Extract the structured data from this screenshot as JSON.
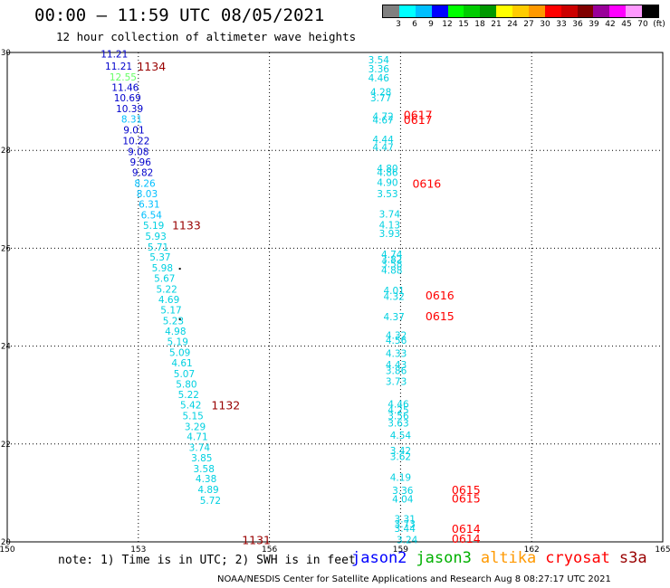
{
  "header": {
    "title": "00:00 — 11:59 UTC 08/05/2021",
    "subtitle": "12 hour collection of altimeter wave heights"
  },
  "colorbar": {
    "colors": [
      "#808080",
      "#00ffff",
      "#00bfff",
      "#0000ff",
      "#00ff00",
      "#00cc00",
      "#009900",
      "#ffff00",
      "#ffcc00",
      "#ff9900",
      "#ff0000",
      "#cc0000",
      "#800000",
      "#990099",
      "#ff00ff",
      "#ff99ff",
      "#000000"
    ],
    "labels": [
      "3",
      "6",
      "9",
      "12",
      "15",
      "18",
      "21",
      "24",
      "27",
      "30",
      "33",
      "36",
      "39",
      "42",
      "45",
      "70",
      "(ft)"
    ]
  },
  "footer": {
    "note": "note: 1) Time is in UTC; 2) SWH is in feet",
    "credit": "NOAA/NESDIS Center for Satellite Applications and Research    Aug  8 08:27:17 UTC 2021"
  },
  "legend": [
    {
      "name": "jason2",
      "color": "#0000ff"
    },
    {
      "name": "jason3",
      "color": "#00b000"
    },
    {
      "name": "altika",
      "color": "#ff9900"
    },
    {
      "name": "cryosat",
      "color": "#ff0000"
    },
    {
      "name": "s3a",
      "color": "#990000"
    }
  ],
  "chart_data": {
    "type": "scatter",
    "xlim": [
      150,
      165
    ],
    "ylim": [
      20,
      30
    ],
    "xticks": [
      "150",
      "153",
      "156",
      "159",
      "162",
      "165"
    ],
    "yticks": [
      "20",
      "22",
      "24",
      "26",
      "28",
      "30"
    ],
    "grid": true,
    "points": [
      {
        "x": 152.45,
        "y": 29.97,
        "label": "11.21",
        "color": "#0000cc"
      },
      {
        "x": 152.55,
        "y": 29.72,
        "label": "11.21",
        "color": "#0000cc"
      },
      {
        "x": 152.65,
        "y": 29.5,
        "label": "12.55",
        "color": "#66ff66"
      },
      {
        "x": 152.7,
        "y": 29.29,
        "label": "11.46",
        "color": "#0000cc"
      },
      {
        "x": 152.75,
        "y": 29.08,
        "label": "10.69",
        "color": "#0000cc"
      },
      {
        "x": 152.8,
        "y": 28.85,
        "label": "10.39",
        "color": "#0000cc"
      },
      {
        "x": 152.85,
        "y": 28.64,
        "label": "8.31",
        "color": "#00bfff"
      },
      {
        "x": 152.9,
        "y": 28.42,
        "label": "9.01",
        "color": "#0000cc"
      },
      {
        "x": 152.95,
        "y": 28.2,
        "label": "10.22",
        "color": "#0000cc"
      },
      {
        "x": 153.0,
        "y": 27.98,
        "label": "9.08",
        "color": "#0000cc"
      },
      {
        "x": 153.05,
        "y": 27.76,
        "label": "9.96",
        "color": "#0000cc"
      },
      {
        "x": 153.1,
        "y": 27.55,
        "label": "9.82",
        "color": "#0000cc"
      },
      {
        "x": 153.15,
        "y": 27.33,
        "label": "8.26",
        "color": "#00bfff"
      },
      {
        "x": 153.2,
        "y": 27.12,
        "label": "8.03",
        "color": "#00bfff"
      },
      {
        "x": 153.25,
        "y": 26.9,
        "label": "6.31",
        "color": "#00bfff"
      },
      {
        "x": 153.3,
        "y": 26.68,
        "label": "6.54",
        "color": "#00bfff"
      },
      {
        "x": 153.35,
        "y": 26.47,
        "label": "5.19",
        "color": "#00d0e0"
      },
      {
        "x": 153.4,
        "y": 26.25,
        "label": "5.93",
        "color": "#00d0e0"
      },
      {
        "x": 153.45,
        "y": 26.03,
        "label": "5.71",
        "color": "#00d0e0"
      },
      {
        "x": 153.5,
        "y": 25.82,
        "label": "5.37",
        "color": "#00d0e0"
      },
      {
        "x": 153.55,
        "y": 25.6,
        "label": "5.98",
        "color": "#00d0e0"
      },
      {
        "x": 153.6,
        "y": 25.39,
        "label": "5.67",
        "color": "#00d0e0"
      },
      {
        "x": 153.65,
        "y": 25.17,
        "label": "5.22",
        "color": "#00d0e0"
      },
      {
        "x": 153.7,
        "y": 24.95,
        "label": "4.69",
        "color": "#00d0e0"
      },
      {
        "x": 153.75,
        "y": 24.74,
        "label": "5.17",
        "color": "#00d0e0"
      },
      {
        "x": 153.8,
        "y": 24.52,
        "label": "5.23",
        "color": "#00d0e0"
      },
      {
        "x": 153.85,
        "y": 24.31,
        "label": "4.98",
        "color": "#00d0e0"
      },
      {
        "x": 153.9,
        "y": 24.09,
        "label": "5.19",
        "color": "#00d0e0"
      },
      {
        "x": 153.95,
        "y": 23.87,
        "label": "5.09",
        "color": "#00d0e0"
      },
      {
        "x": 154.0,
        "y": 23.66,
        "label": "4.61",
        "color": "#00d0e0"
      },
      {
        "x": 154.05,
        "y": 23.44,
        "label": "5.07",
        "color": "#00d0e0"
      },
      {
        "x": 154.1,
        "y": 23.23,
        "label": "5.80",
        "color": "#00d0e0"
      },
      {
        "x": 154.15,
        "y": 23.01,
        "label": "5.22",
        "color": "#00d0e0"
      },
      {
        "x": 154.2,
        "y": 22.8,
        "label": "5.42",
        "color": "#00d0e0"
      },
      {
        "x": 154.25,
        "y": 22.58,
        "label": "5.15",
        "color": "#00d0e0"
      },
      {
        "x": 154.3,
        "y": 22.36,
        "label": "3.29",
        "color": "#00d0e0"
      },
      {
        "x": 154.35,
        "y": 22.15,
        "label": "4.71",
        "color": "#00d0e0"
      },
      {
        "x": 154.4,
        "y": 21.93,
        "label": "3.74",
        "color": "#00d0e0"
      },
      {
        "x": 154.45,
        "y": 21.72,
        "label": "3.85",
        "color": "#00d0e0"
      },
      {
        "x": 154.5,
        "y": 21.5,
        "label": "3.58",
        "color": "#00d0e0"
      },
      {
        "x": 154.55,
        "y": 21.29,
        "label": "4.38",
        "color": "#00d0e0"
      },
      {
        "x": 154.6,
        "y": 21.07,
        "label": "4.89",
        "color": "#00d0e0"
      },
      {
        "x": 154.65,
        "y": 20.85,
        "label": "5.72",
        "color": "#00d0e0"
      },
      {
        "x": 158.5,
        "y": 29.85,
        "label": "3.54",
        "color": "#00d0e0"
      },
      {
        "x": 158.5,
        "y": 29.67,
        "label": "3.36",
        "color": "#00d0e0"
      },
      {
        "x": 158.5,
        "y": 29.48,
        "label": "4.46",
        "color": "#00d0e0"
      },
      {
        "x": 158.55,
        "y": 29.2,
        "label": "4.28",
        "color": "#00d0e0"
      },
      {
        "x": 158.55,
        "y": 29.08,
        "label": "3.77",
        "color": "#00d0e0"
      },
      {
        "x": 158.6,
        "y": 28.7,
        "label": "4.72",
        "color": "#00d0e0"
      },
      {
        "x": 158.6,
        "y": 28.62,
        "label": "4.67",
        "color": "#00d0e0"
      },
      {
        "x": 158.6,
        "y": 28.23,
        "label": "4.44",
        "color": "#00d0e0"
      },
      {
        "x": 158.6,
        "y": 28.07,
        "label": "4.47",
        "color": "#00d0e0"
      },
      {
        "x": 158.7,
        "y": 27.63,
        "label": "4.80",
        "color": "#00d0e0"
      },
      {
        "x": 158.7,
        "y": 27.55,
        "label": "4.86",
        "color": "#00d0e0"
      },
      {
        "x": 158.7,
        "y": 27.35,
        "label": "4.90",
        "color": "#00d0e0"
      },
      {
        "x": 158.7,
        "y": 27.12,
        "label": "3.53",
        "color": "#00d0e0"
      },
      {
        "x": 158.75,
        "y": 26.7,
        "label": "3.74",
        "color": "#00d0e0"
      },
      {
        "x": 158.75,
        "y": 26.48,
        "label": "4.13",
        "color": "#00d0e0"
      },
      {
        "x": 158.75,
        "y": 26.3,
        "label": "3.93",
        "color": "#00d0e0"
      },
      {
        "x": 158.8,
        "y": 25.88,
        "label": "4.74",
        "color": "#00d0e0"
      },
      {
        "x": 158.8,
        "y": 25.78,
        "label": "3.82",
        "color": "#00d0e0"
      },
      {
        "x": 158.8,
        "y": 25.68,
        "label": "3.58",
        "color": "#00d0e0"
      },
      {
        "x": 158.8,
        "y": 25.55,
        "label": "4.88",
        "color": "#00d0e0"
      },
      {
        "x": 158.85,
        "y": 25.14,
        "label": "4.01",
        "color": "#00d0e0"
      },
      {
        "x": 158.85,
        "y": 25.02,
        "label": "4.32",
        "color": "#00d0e0"
      },
      {
        "x": 158.85,
        "y": 24.6,
        "label": "4.37",
        "color": "#00d0e0"
      },
      {
        "x": 158.9,
        "y": 24.22,
        "label": "4.32",
        "color": "#00d0e0"
      },
      {
        "x": 158.9,
        "y": 24.12,
        "label": "4.56",
        "color": "#00d0e0"
      },
      {
        "x": 158.9,
        "y": 23.85,
        "label": "4.33",
        "color": "#00d0e0"
      },
      {
        "x": 158.9,
        "y": 23.62,
        "label": "4.43",
        "color": "#00d0e0"
      },
      {
        "x": 158.9,
        "y": 23.5,
        "label": "3.86",
        "color": "#00d0e0"
      },
      {
        "x": 158.9,
        "y": 23.28,
        "label": "3.73",
        "color": "#00d0e0"
      },
      {
        "x": 158.95,
        "y": 22.82,
        "label": "4.46",
        "color": "#00d0e0"
      },
      {
        "x": 158.95,
        "y": 22.7,
        "label": "4.25",
        "color": "#00d0e0"
      },
      {
        "x": 158.95,
        "y": 22.58,
        "label": "3.56",
        "color": "#00d0e0"
      },
      {
        "x": 158.95,
        "y": 22.43,
        "label": "3.63",
        "color": "#00d0e0"
      },
      {
        "x": 159.0,
        "y": 22.18,
        "label": "4.54",
        "color": "#00d0e0"
      },
      {
        "x": 159.0,
        "y": 21.87,
        "label": "3.42",
        "color": "#00d0e0"
      },
      {
        "x": 159.0,
        "y": 21.75,
        "label": "3.62",
        "color": "#00d0e0"
      },
      {
        "x": 159.0,
        "y": 21.32,
        "label": "4.19",
        "color": "#00d0e0"
      },
      {
        "x": 159.05,
        "y": 21.05,
        "label": "3.36",
        "color": "#00d0e0"
      },
      {
        "x": 159.05,
        "y": 20.88,
        "label": "4.04",
        "color": "#00d0e0"
      },
      {
        "x": 159.1,
        "y": 20.47,
        "label": "3.31",
        "color": "#00d0e0"
      },
      {
        "x": 159.1,
        "y": 20.37,
        "label": "3.73",
        "color": "#00d0e0"
      },
      {
        "x": 159.1,
        "y": 20.28,
        "label": "3.44",
        "color": "#00d0e0"
      },
      {
        "x": 159.15,
        "y": 20.05,
        "label": "3.24",
        "color": "#00d0e0"
      }
    ],
    "track_labels": [
      {
        "x": 153.3,
        "y": 29.72,
        "label": "1134",
        "color": "#990000"
      },
      {
        "x": 154.1,
        "y": 26.48,
        "label": "1133",
        "color": "#990000"
      },
      {
        "x": 155.0,
        "y": 22.8,
        "label": "1132",
        "color": "#990000"
      },
      {
        "x": 155.7,
        "y": 20.05,
        "label": "1131",
        "color": "#990000"
      },
      {
        "x": 159.4,
        "y": 28.73,
        "label": "0617",
        "color": "#ff0000"
      },
      {
        "x": 159.4,
        "y": 28.63,
        "label": "0617",
        "color": "#ff0000"
      },
      {
        "x": 159.6,
        "y": 27.33,
        "label": "0616",
        "color": "#ff0000"
      },
      {
        "x": 159.9,
        "y": 25.05,
        "label": "0616",
        "color": "#ff0000"
      },
      {
        "x": 159.9,
        "y": 24.62,
        "label": "0615",
        "color": "#ff0000"
      },
      {
        "x": 160.5,
        "y": 21.07,
        "label": "0615",
        "color": "#ff0000"
      },
      {
        "x": 160.5,
        "y": 20.9,
        "label": "0615",
        "color": "#ff0000"
      },
      {
        "x": 160.5,
        "y": 20.28,
        "label": "0614",
        "color": "#ff0000"
      },
      {
        "x": 160.5,
        "y": 20.07,
        "label": "0614",
        "color": "#ff0000"
      }
    ],
    "markers": [
      {
        "x": 153.95,
        "y": 25.58
      },
      {
        "x": 153.95,
        "y": 24.55
      }
    ]
  }
}
